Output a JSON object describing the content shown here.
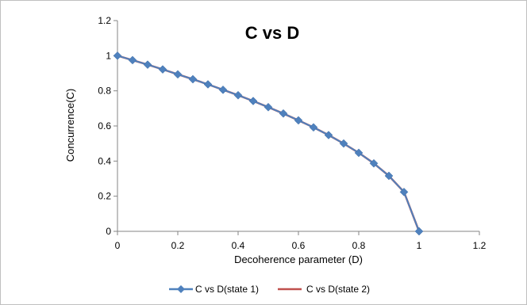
{
  "chart_data": {
    "type": "line",
    "title": "C vs D",
    "xlabel": "Decoherence parameter (D)",
    "ylabel": "Concurrence(C)",
    "xlim": [
      0,
      1.2
    ],
    "ylim": [
      0,
      1.2
    ],
    "x_ticks": [
      "0",
      "0.2",
      "0.4",
      "0.6",
      "0.8",
      "1",
      "1.2"
    ],
    "y_ticks": [
      "0",
      "0.2",
      "0.4",
      "0.6",
      "0.8",
      "1",
      "1.2"
    ],
    "grid": false,
    "legend_position": "bottom",
    "x": [
      0,
      0.05,
      0.1,
      0.15,
      0.2,
      0.25,
      0.3,
      0.35,
      0.4,
      0.45,
      0.5,
      0.55,
      0.6,
      0.65,
      0.7,
      0.75,
      0.8,
      0.85,
      0.9,
      0.95,
      1.0
    ],
    "series": [
      {
        "name": "C vs D(state 1)",
        "color": "#4f81bd",
        "marker": "diamond",
        "values": [
          1.0,
          0.975,
          0.949,
          0.922,
          0.894,
          0.866,
          0.837,
          0.806,
          0.775,
          0.742,
          0.707,
          0.671,
          0.632,
          0.592,
          0.548,
          0.5,
          0.447,
          0.387,
          0.316,
          0.224,
          0.0
        ]
      },
      {
        "name": "C vs D(state 2)",
        "color": "#c0504d",
        "marker": "none",
        "values": [
          1.0,
          0.975,
          0.949,
          0.922,
          0.894,
          0.866,
          0.837,
          0.806,
          0.775,
          0.742,
          0.707,
          0.671,
          0.632,
          0.592,
          0.548,
          0.5,
          0.447,
          0.387,
          0.316,
          0.224,
          0.0
        ]
      }
    ]
  }
}
